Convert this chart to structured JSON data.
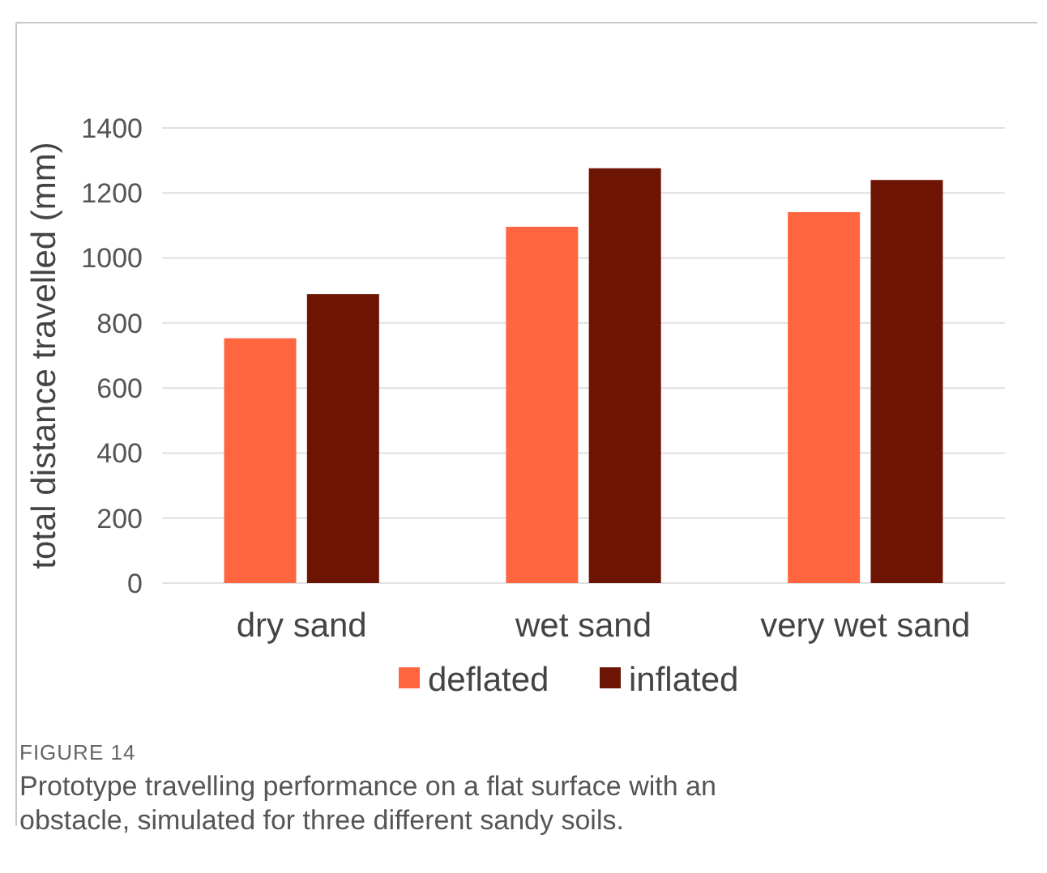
{
  "chart_data": {
    "type": "bar",
    "ylabel": "total distance travelled (mm)",
    "categories": [
      "dry sand",
      "wet sand",
      "very wet sand"
    ],
    "series": [
      {
        "name": "deflated",
        "color": "#ff6640",
        "values": [
          753,
          1096,
          1141
        ]
      },
      {
        "name": "inflated",
        "color": "#6e1403",
        "values": [
          889,
          1276,
          1240
        ]
      }
    ],
    "ylim": [
      0,
      1400
    ],
    "yticks": [
      0,
      200,
      400,
      600,
      800,
      1000,
      1200,
      1400
    ],
    "grid": "y",
    "legend": "bottom",
    "annotations": [
      "FIGURE 14",
      "Prototype travelling performance on a flat surface with an obstacle, simulated for three different sandy soils."
    ]
  }
}
